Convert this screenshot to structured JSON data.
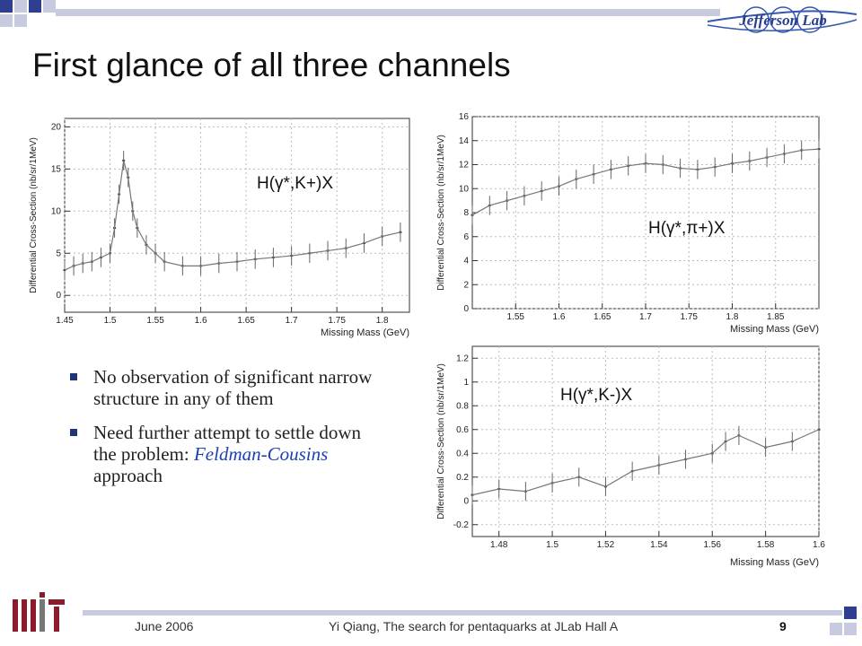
{
  "slide": {
    "title": "First glance of all three channels",
    "bullets": [
      {
        "text": "No observation of significant narrow structure in any of them"
      },
      {
        "text_before": "Need further attempt to settle down the problem: ",
        "highlight": "Feldman-Cousins",
        "text_after": " approach"
      }
    ],
    "footer": {
      "date": "June 2006",
      "center": "Yi Qiang, The search for pentaquarks at JLab Hall A",
      "page": "9"
    },
    "logo_text": "Jefferson Lab",
    "colors": {
      "accent": "#2a3d8f",
      "highlight": "#1b3fb5",
      "bar": "#2f3f8f"
    }
  },
  "chart_data": [
    {
      "type": "scatter",
      "title": "H(γ*,K+)X",
      "xlabel": "Missing Mass (GeV)",
      "ylabel": "Differential Cross-Section (nb/sr/1MeV)",
      "xlim": [
        1.45,
        1.83
      ],
      "ylim": [
        -2,
        21
      ],
      "xticks": [
        "1.45",
        "1.5",
        "1.55",
        "1.6",
        "1.65",
        "1.7",
        "1.75",
        "1.8"
      ],
      "yticks": [
        "0",
        "5",
        "10",
        "15",
        "20"
      ],
      "xtick_values": [
        1.45,
        1.5,
        1.55,
        1.6,
        1.65,
        1.7,
        1.75,
        1.8
      ],
      "ytick_values": [
        0,
        5,
        10,
        15,
        20
      ],
      "x": [
        1.45,
        1.46,
        1.47,
        1.48,
        1.49,
        1.5,
        1.505,
        1.51,
        1.515,
        1.52,
        1.525,
        1.53,
        1.54,
        1.55,
        1.56,
        1.58,
        1.6,
        1.62,
        1.64,
        1.66,
        1.68,
        1.7,
        1.72,
        1.74,
        1.76,
        1.78,
        1.8,
        1.82
      ],
      "y": [
        3,
        3.5,
        3.8,
        4,
        4.5,
        5,
        8,
        12,
        16,
        14,
        10,
        8,
        6,
        5,
        4,
        3.5,
        3.5,
        3.8,
        4,
        4.3,
        4.5,
        4.7,
        5,
        5.3,
        5.6,
        6.2,
        7,
        7.5
      ]
    },
    {
      "type": "scatter",
      "title": "H(γ*,π+)X",
      "xlabel": "Missing Mass (GeV)",
      "ylabel": "Differential Cross-Section (nb/sr/1MeV)",
      "xlim": [
        1.5,
        1.9
      ],
      "ylim": [
        0,
        16
      ],
      "xticks": [
        "1.55",
        "1.6",
        "1.65",
        "1.7",
        "1.75",
        "1.8",
        "1.85"
      ],
      "yticks": [
        "0",
        "2",
        "4",
        "6",
        "8",
        "10",
        "12",
        "14",
        "16"
      ],
      "xtick_values": [
        1.55,
        1.6,
        1.65,
        1.7,
        1.75,
        1.8,
        1.85
      ],
      "ytick_values": [
        0,
        2,
        4,
        6,
        8,
        10,
        12,
        14,
        16
      ],
      "x": [
        1.5,
        1.52,
        1.54,
        1.56,
        1.58,
        1.6,
        1.62,
        1.64,
        1.66,
        1.68,
        1.7,
        1.72,
        1.74,
        1.76,
        1.78,
        1.8,
        1.82,
        1.84,
        1.86,
        1.88,
        1.9
      ],
      "y": [
        7.8,
        8.6,
        9,
        9.4,
        9.8,
        10.2,
        10.8,
        11.2,
        11.6,
        11.9,
        12.1,
        12.0,
        11.7,
        11.6,
        11.8,
        12.1,
        12.3,
        12.6,
        12.9,
        13.2,
        13.3
      ]
    },
    {
      "type": "scatter",
      "title": "H(γ*,K-)X",
      "xlabel": "Missing Mass (GeV)",
      "ylabel": "Differential Cross-Section (nb/sr/1MeV)",
      "xlim": [
        1.47,
        1.6
      ],
      "ylim": [
        -0.3,
        1.3
      ],
      "xticks": [
        "1.48",
        "1.5",
        "1.52",
        "1.54",
        "1.56",
        "1.58",
        "1.6"
      ],
      "yticks": [
        "-0.2",
        "0",
        "0.2",
        "0.4",
        "0.6",
        "0.8",
        "1",
        "1.2"
      ],
      "xtick_values": [
        1.48,
        1.5,
        1.52,
        1.54,
        1.56,
        1.58,
        1.6
      ],
      "ytick_values": [
        -0.2,
        0,
        0.2,
        0.4,
        0.6,
        0.8,
        1,
        1.2
      ],
      "x": [
        1.47,
        1.48,
        1.49,
        1.5,
        1.51,
        1.52,
        1.53,
        1.54,
        1.55,
        1.56,
        1.565,
        1.57,
        1.58,
        1.59,
        1.6
      ],
      "y": [
        0.05,
        0.1,
        0.08,
        0.15,
        0.2,
        0.12,
        0.25,
        0.3,
        0.35,
        0.4,
        0.5,
        0.55,
        0.45,
        0.5,
        0.6
      ]
    }
  ]
}
